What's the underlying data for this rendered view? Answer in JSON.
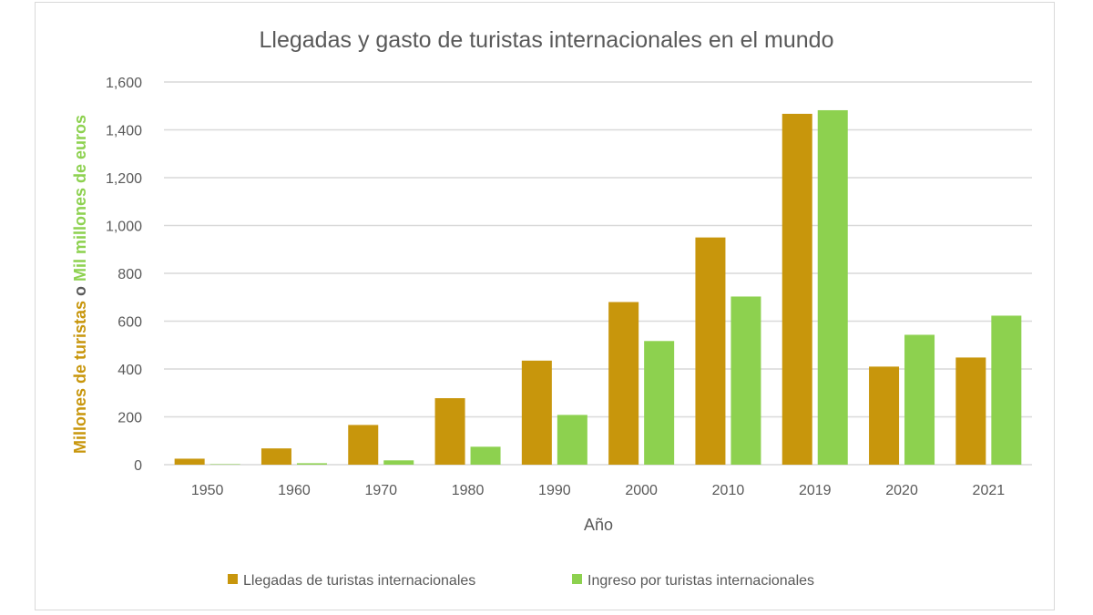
{
  "chart_data": {
    "type": "bar",
    "title": "Llegadas y gasto de turistas internacionales en el mundo",
    "xlabel": "Año",
    "ylabel_parts": [
      {
        "text": "Millones de turistas",
        "color": "#C8960C"
      },
      {
        "text": " o ",
        "color": "#595959"
      },
      {
        "text": "Mil millones de euros",
        "color": "#8DD14F"
      }
    ],
    "ylim": [
      0,
      1600
    ],
    "yticks": [
      0,
      200,
      400,
      600,
      800,
      1000,
      1200,
      1400,
      1600
    ],
    "ytick_labels": [
      "0",
      "200",
      "400",
      "600",
      "800",
      "1,000",
      "1,200",
      "1,400",
      "1,600"
    ],
    "grid": true,
    "legend_position": "bottom",
    "categories": [
      "1950",
      "1960",
      "1970",
      "1980",
      "1990",
      "2000",
      "2010",
      "2019",
      "2020",
      "2021"
    ],
    "series": [
      {
        "name": "Llegadas de turistas internacionales",
        "color": "#C8960C",
        "values": [
          25,
          68,
          166,
          278,
          435,
          680,
          950,
          1467,
          410,
          448
        ]
      },
      {
        "name": "Ingreso por turistas internacionales",
        "color": "#8DD14F",
        "values": [
          2,
          6,
          18,
          75,
          208,
          517,
          703,
          1482,
          543,
          623
        ]
      }
    ]
  }
}
